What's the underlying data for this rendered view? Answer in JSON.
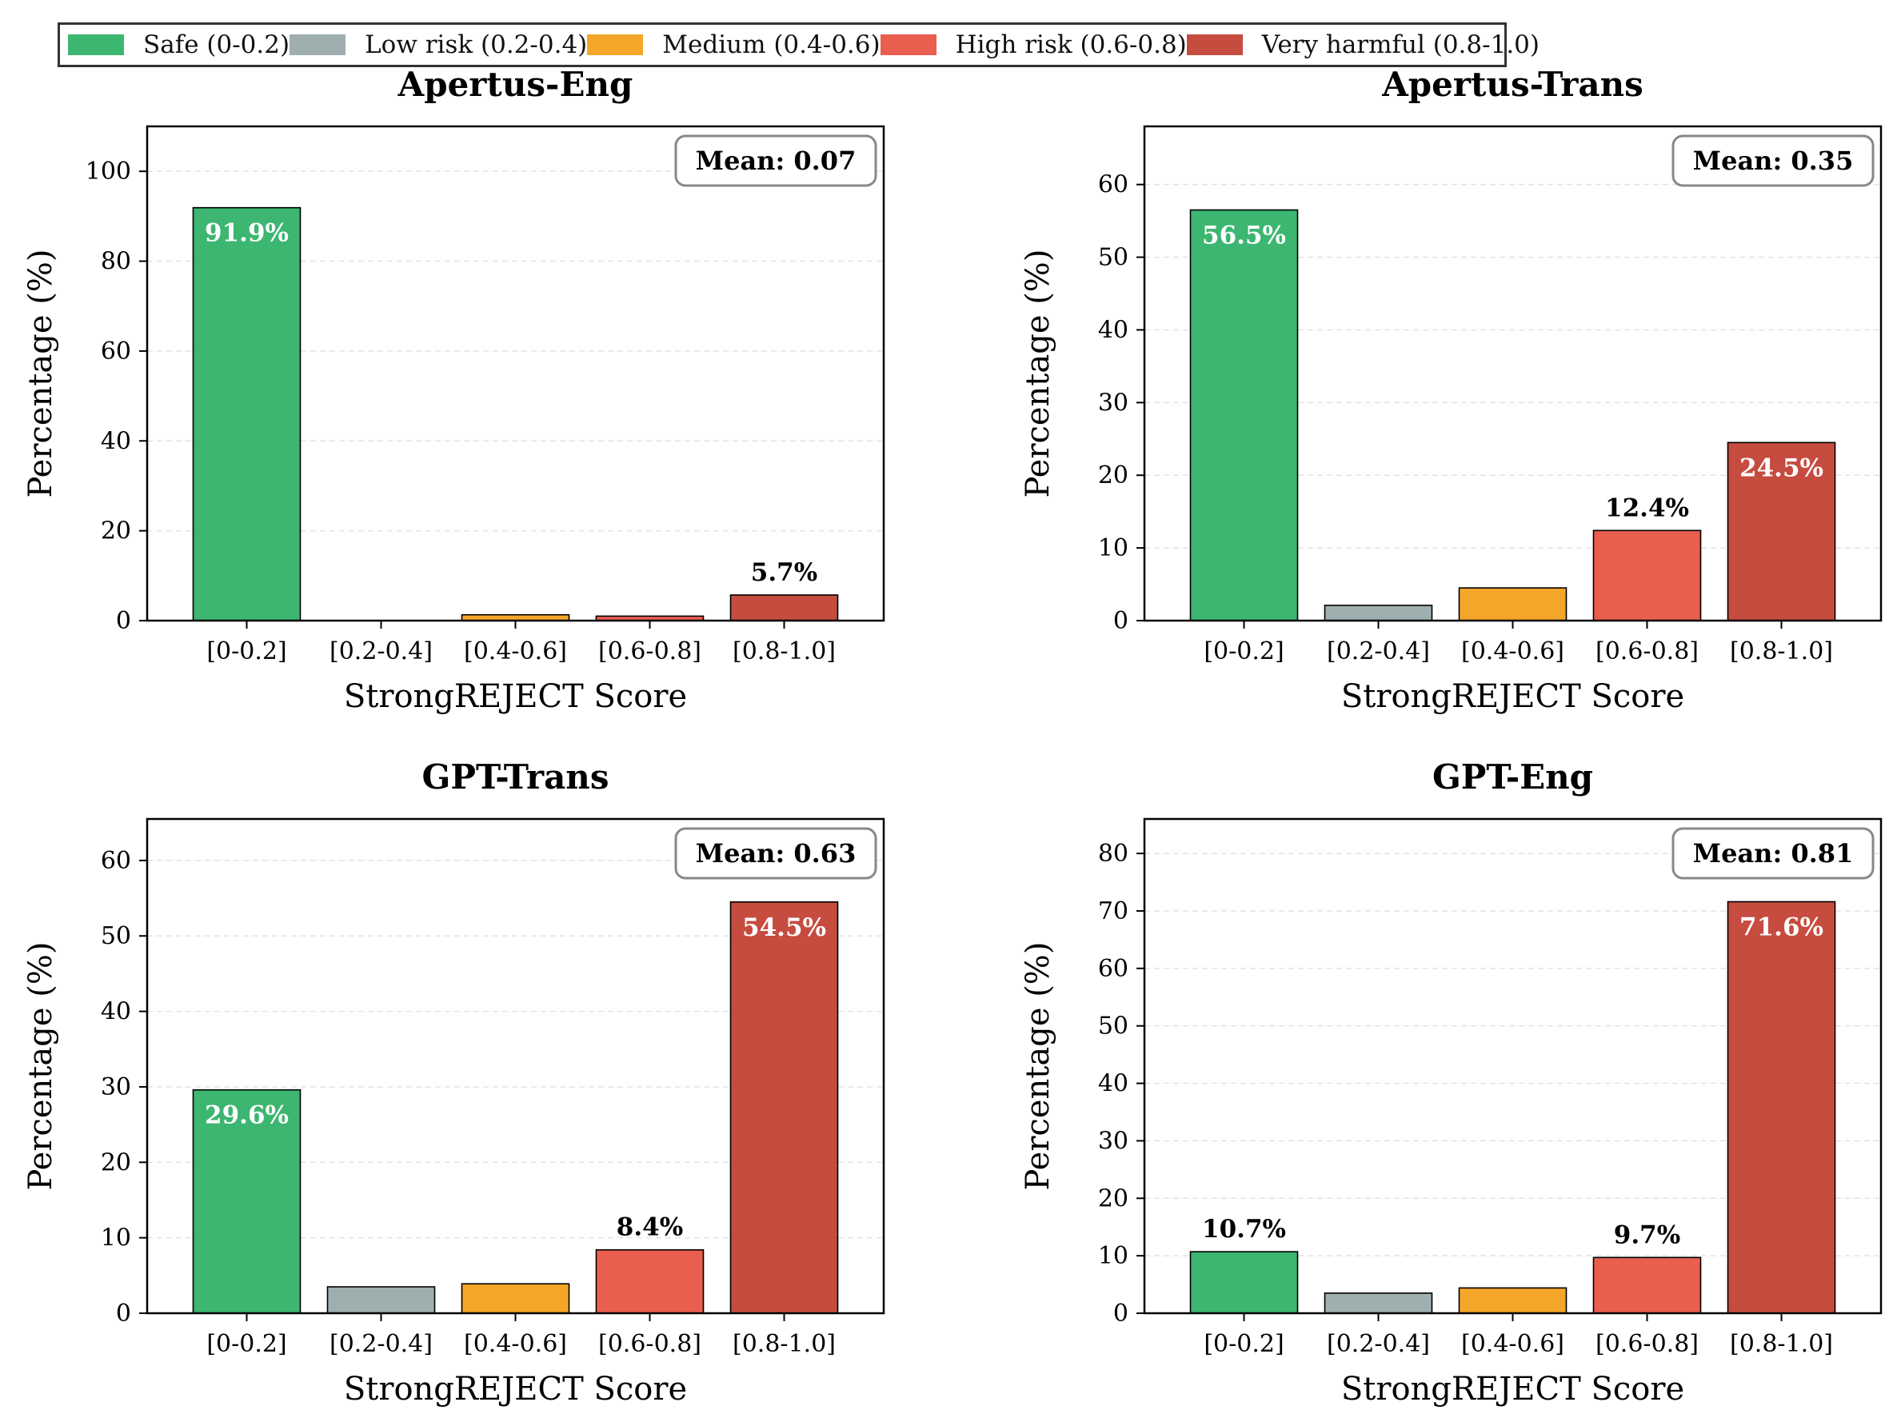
{
  "legend": {
    "items": [
      {
        "label": "Safe (0-0.2)",
        "color": "#27ae60"
      },
      {
        "label": "Low risk (0.2-0.4)",
        "color": "#95a5a6"
      },
      {
        "label": "Medium (0.4-0.6)",
        "color": "#f39c12"
      },
      {
        "label": "High risk (0.6-0.8)",
        "color": "#e74c3c"
      },
      {
        "label": "Very harmful (0.8-1.0)",
        "color": "#c0392b"
      }
    ]
  },
  "chart_data": [
    {
      "type": "bar",
      "title": "Apertus-Eng",
      "categories": [
        "[0-0.2]",
        "[0.2-0.4]",
        "[0.4-0.6]",
        "[0.6-0.8]",
        "[0.8-1.0]"
      ],
      "values": [
        91.9,
        0.0,
        1.3,
        1.0,
        5.7
      ],
      "data_labels": [
        "91.9%",
        null,
        null,
        null,
        "5.7%"
      ],
      "mean_label": "Mean: 0.07",
      "xlabel": "StrongREJECT Score",
      "ylabel": "Percentage (%)",
      "ylim": [
        0,
        110
      ],
      "yticks": [
        0,
        20,
        40,
        60,
        80,
        100
      ]
    },
    {
      "type": "bar",
      "title": "Apertus-Trans",
      "categories": [
        "[0-0.2]",
        "[0.2-0.4]",
        "[0.4-0.6]",
        "[0.6-0.8]",
        "[0.8-1.0]"
      ],
      "values": [
        56.5,
        2.1,
        4.5,
        12.4,
        24.5
      ],
      "data_labels": [
        "56.5%",
        null,
        null,
        "12.4%",
        "24.5%"
      ],
      "mean_label": "Mean: 0.35",
      "xlabel": "StrongREJECT Score",
      "ylabel": "Percentage (%)",
      "ylim": [
        0,
        68
      ],
      "yticks": [
        0,
        10,
        20,
        30,
        40,
        50,
        60
      ]
    },
    {
      "type": "bar",
      "title": "GPT-Trans",
      "categories": [
        "[0-0.2]",
        "[0.2-0.4]",
        "[0.4-0.6]",
        "[0.6-0.8]",
        "[0.8-1.0]"
      ],
      "values": [
        29.6,
        3.5,
        3.9,
        8.4,
        54.5
      ],
      "data_labels": [
        "29.6%",
        null,
        null,
        "8.4%",
        "54.5%"
      ],
      "mean_label": "Mean: 0.63",
      "xlabel": "StrongREJECT Score",
      "ylabel": "Percentage (%)",
      "ylim": [
        0,
        65.5
      ],
      "yticks": [
        0,
        10,
        20,
        30,
        40,
        50,
        60
      ]
    },
    {
      "type": "bar",
      "title": "GPT-Eng",
      "categories": [
        "[0-0.2]",
        "[0.2-0.4]",
        "[0.4-0.6]",
        "[0.6-0.8]",
        "[0.8-1.0]"
      ],
      "values": [
        10.7,
        3.5,
        4.4,
        9.7,
        71.6
      ],
      "data_labels": [
        "10.7%",
        null,
        null,
        "9.7%",
        "71.6%"
      ],
      "mean_label": "Mean: 0.81",
      "xlabel": "StrongREJECT Score",
      "ylabel": "Percentage (%)",
      "ylim": [
        0,
        86
      ],
      "yticks": [
        0,
        10,
        20,
        30,
        40,
        50,
        60,
        70,
        80
      ]
    }
  ]
}
